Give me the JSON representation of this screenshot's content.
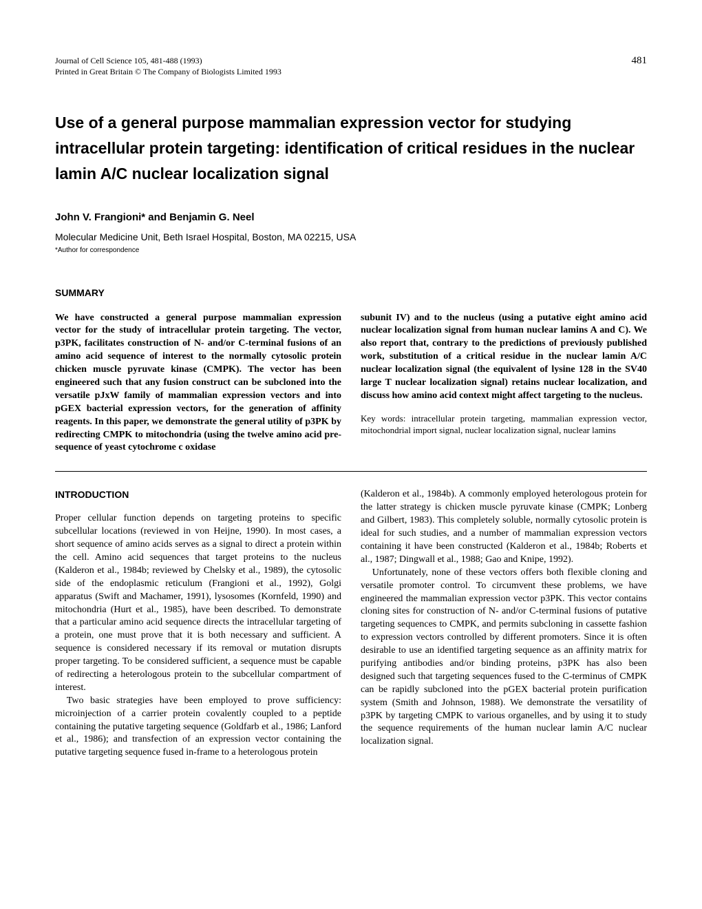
{
  "header": {
    "journal_line1": "Journal of Cell Science 105, 481-488 (1993)",
    "journal_line2": "Printed in Great Britain © The Company of Biologists Limited 1993",
    "page_number": "481"
  },
  "title": "Use of a general purpose mammalian expression vector for studying intracellular protein targeting: identification of critical residues in the nuclear lamin A/C nuclear localization signal",
  "authors": "John V. Frangioni* and Benjamin G. Neel",
  "affiliation": "Molecular Medicine Unit, Beth Israel Hospital, Boston, MA 02215, USA",
  "correspondence": "*Author for correspondence",
  "summary": {
    "heading": "SUMMARY",
    "left": "We have constructed a general purpose mammalian expression vector for the study of intracellular protein targeting. The vector, p3PK, facilitates construction of N- and/or C-terminal fusions of an amino acid sequence of interest to the normally cytosolic protein chicken muscle pyruvate kinase (CMPK). The vector has been engineered such that any fusion construct can be subcloned into the versatile pJxW family of mammalian expression vectors and into pGEX bacterial expression vectors, for the generation of affinity reagents. In this paper, we demonstrate the general utility of p3PK by redirecting CMPK to mitochondria (using the twelve amino acid pre-sequence of yeast cytochrome c oxidase",
    "right": "subunit IV) and to the nucleus (using a putative eight amino acid nuclear localization signal from human nuclear lamins A and C). We also report that, contrary to the predictions of previously published work, substitution of a critical residue in the nuclear lamin A/C nuclear localization signal (the equivalent of lysine 128 in the SV40 large T nuclear localization signal) retains nuclear localization, and discuss how amino acid context might affect targeting to the nucleus.",
    "keywords": "Key words: intracellular protein targeting, mammalian expression vector, mitochondrial import signal, nuclear localization signal, nuclear lamins"
  },
  "introduction": {
    "heading": "INTRODUCTION",
    "left_p1": "Proper cellular function depends on targeting proteins to specific subcellular locations (reviewed in von Heijne, 1990). In most cases, a short sequence of amino acids serves as a signal to direct a protein within the cell. Amino acid sequences that target proteins to the nucleus (Kalderon et al., 1984b; reviewed by Chelsky et al., 1989), the cytosolic side of the endoplasmic reticulum (Frangioni et al., 1992), Golgi apparatus (Swift and Machamer, 1991), lysosomes (Kornfeld, 1990) and mitochondria (Hurt et al., 1985), have been described. To demonstrate that a particular amino acid sequence directs the intracellular targeting of a protein, one must prove that it is both necessary and sufficient. A sequence is considered necessary if its removal or mutation disrupts proper targeting. To be considered sufficient, a sequence must be capable of redirecting a heterologous protein to the subcellular compartment of interest.",
    "left_p2": "Two basic strategies have been employed to prove sufficiency: microinjection of a carrier protein covalently coupled to a peptide containing the putative targeting sequence (Goldfarb et al., 1986; Lanford et al., 1986); and transfection of an expression vector containing the putative targeting sequence fused in-frame to a heterologous protein",
    "right_p1": "(Kalderon et al., 1984b). A commonly employed heterologous protein for the latter strategy is chicken muscle pyruvate kinase (CMPK; Lonberg and Gilbert, 1983). This completely soluble, normally cytosolic protein is ideal for such studies, and a number of mammalian expression vectors containing it have been constructed (Kalderon et al., 1984b; Roberts et al., 1987; Dingwall et al., 1988; Gao and Knipe, 1992).",
    "right_p2": "Unfortunately, none of these vectors offers both flexible cloning and versatile promoter control. To circumvent these problems, we have engineered the mammalian expression vector p3PK. This vector contains cloning sites for construction of N- and/or C-terminal fusions of putative targeting sequences to CMPK, and permits subcloning in cassette fashion to expression vectors controlled by different promoters. Since it is often desirable to use an identified targeting sequence as an affinity matrix for purifying antibodies and/or binding proteins, p3PK has also been designed such that targeting sequences fused to the C-terminus of CMPK can be rapidly subcloned into the pGEX bacterial protein purification system (Smith and Johnson, 1988). We demonstrate the versatility of p3PK by targeting CMPK to various organelles, and by using it to study the sequence requirements of the human nuclear lamin A/C nuclear localization signal."
  }
}
